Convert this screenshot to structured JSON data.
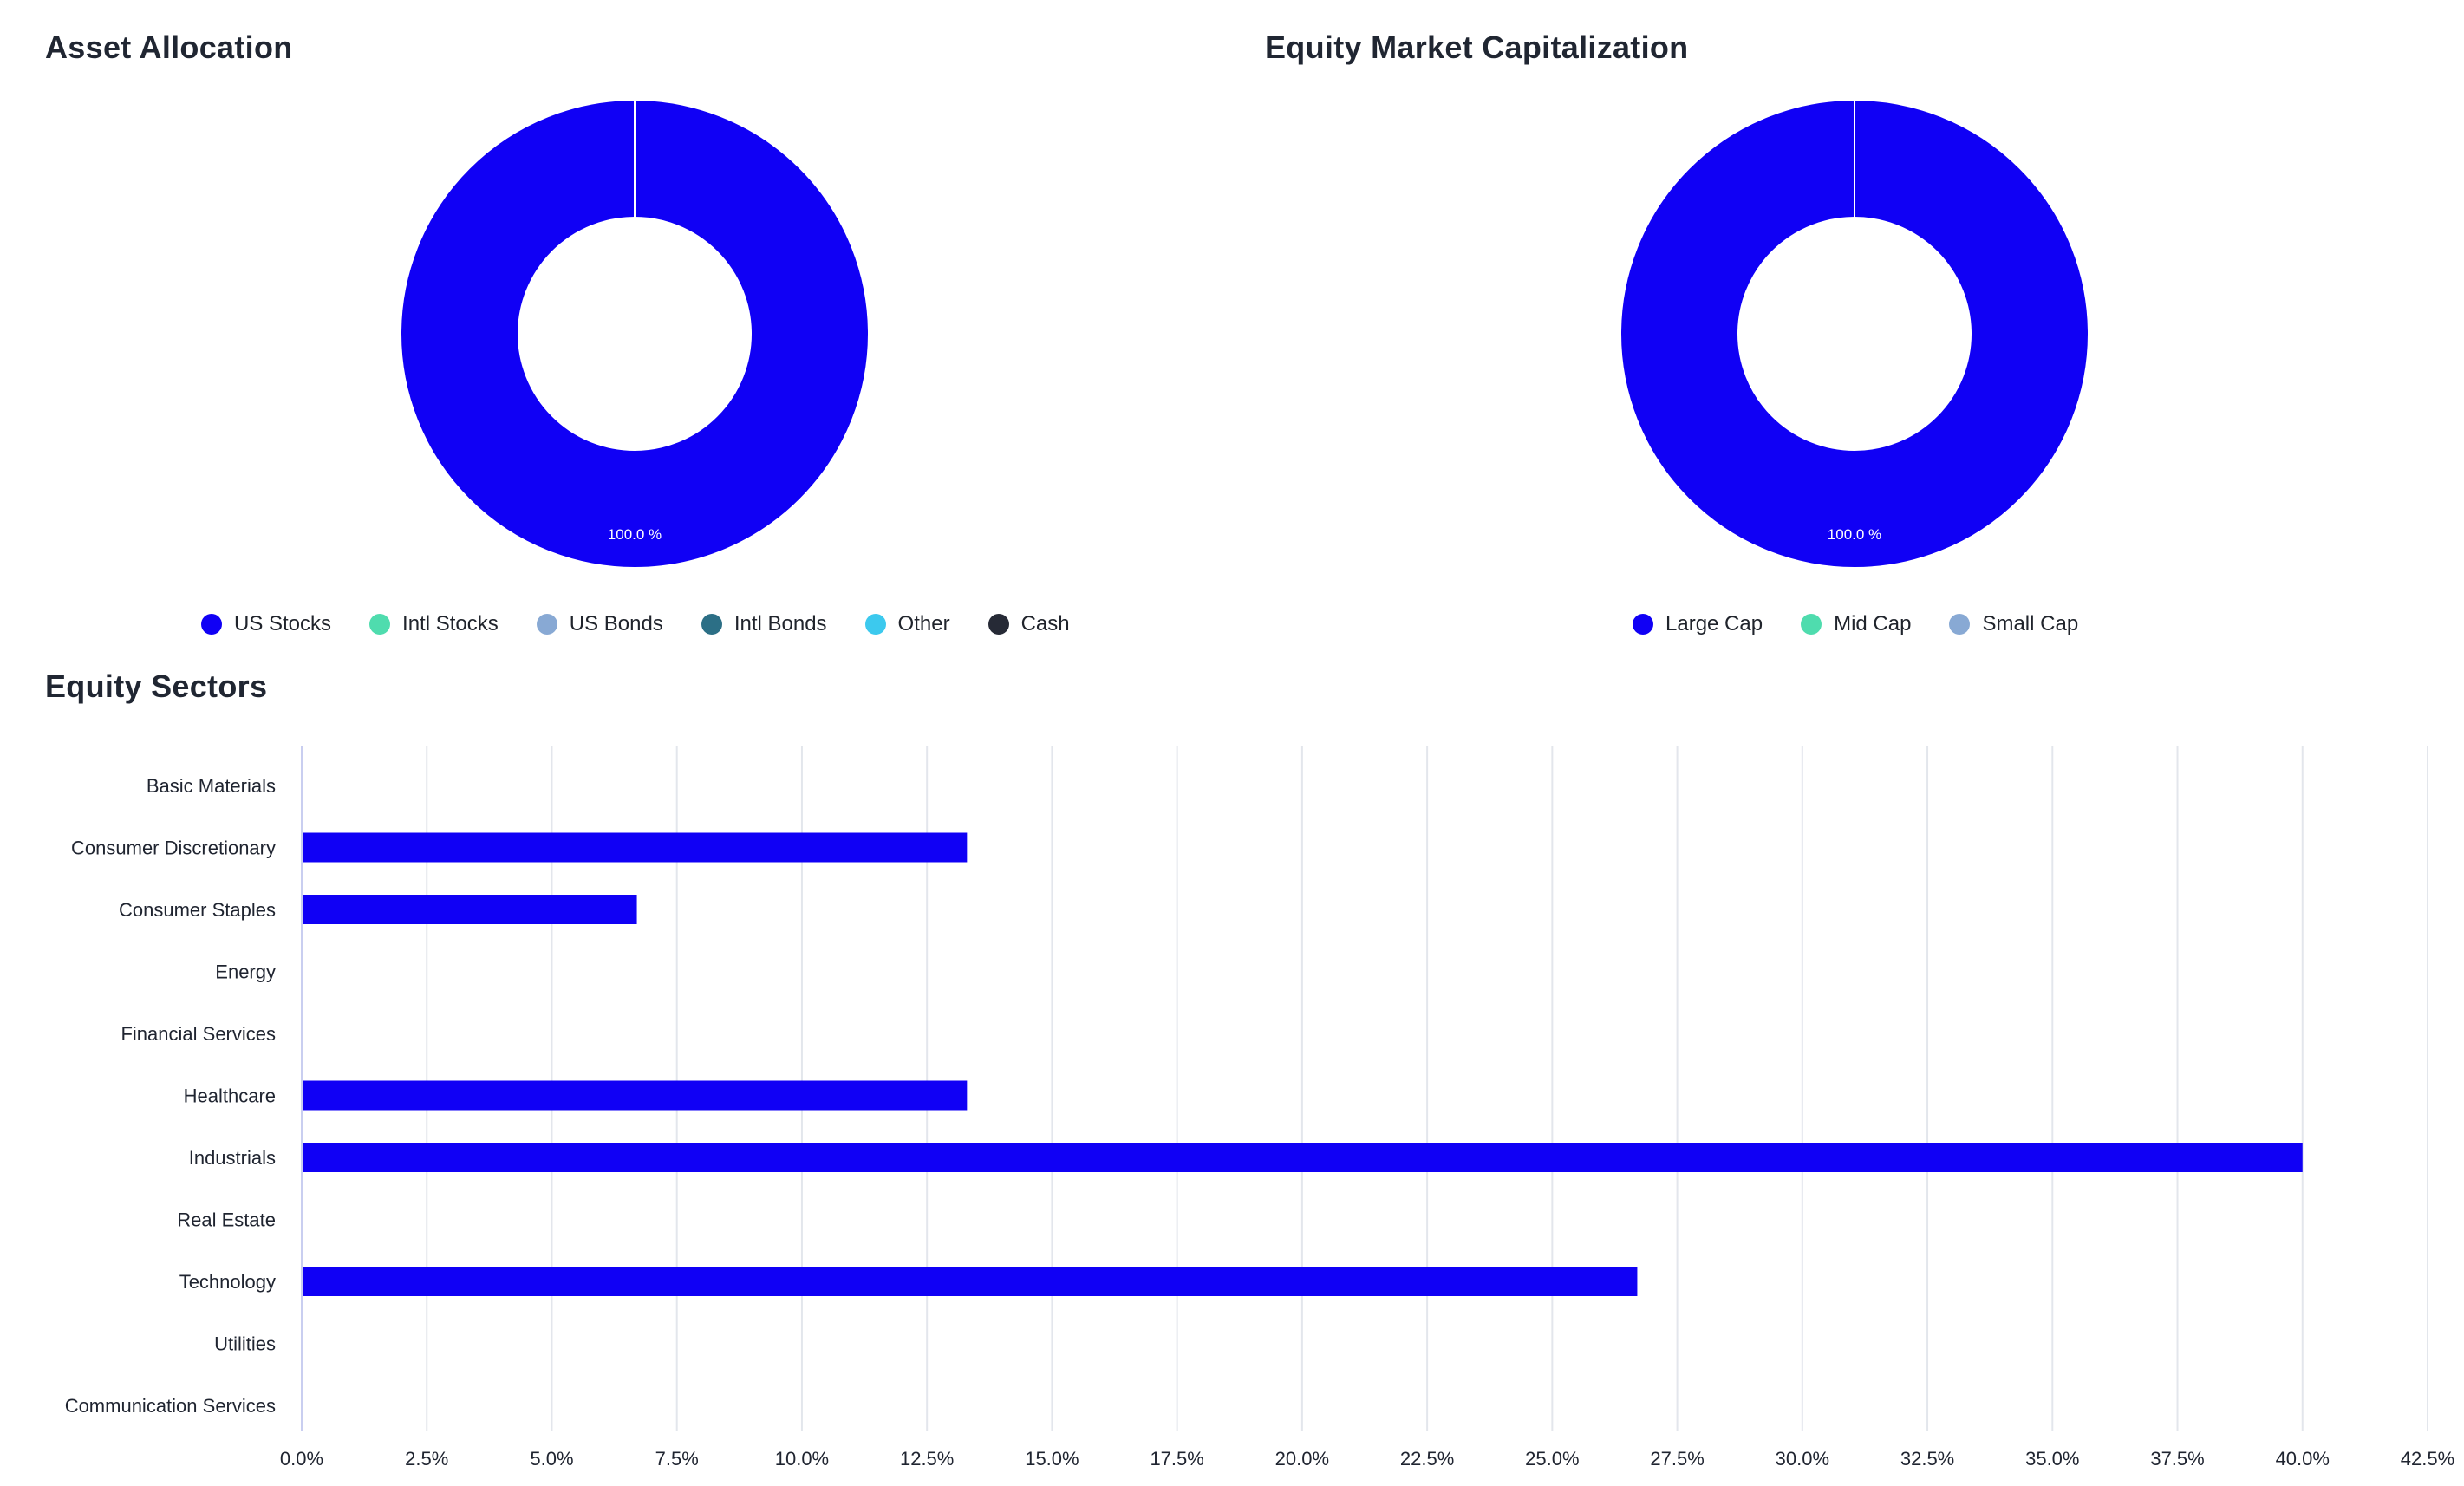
{
  "colors": {
    "primary": "#1000f5",
    "mint": "#4fdcae",
    "steel_blue": "#88a9d4",
    "teal": "#2c6f86",
    "cyan": "#3cc9ee",
    "dark": "#262a36",
    "grid": "#e3e6ec",
    "axis": "#c9cef0"
  },
  "asset_allocation": {
    "title": "Asset Allocation",
    "center_label": "100.0 %",
    "legend": [
      {
        "label": "US Stocks",
        "color": "#1000f5"
      },
      {
        "label": "Intl Stocks",
        "color": "#4fdcae"
      },
      {
        "label": "US Bonds",
        "color": "#88a9d4"
      },
      {
        "label": "Intl Bonds",
        "color": "#2c6f86"
      },
      {
        "label": "Other",
        "color": "#3cc9ee"
      },
      {
        "label": "Cash",
        "color": "#262a36"
      }
    ]
  },
  "market_cap": {
    "title": "Equity Market Capitalization",
    "center_label": "100.0 %",
    "legend": [
      {
        "label": "Large Cap",
        "color": "#1000f5"
      },
      {
        "label": "Mid Cap",
        "color": "#4fdcae"
      },
      {
        "label": "Small Cap",
        "color": "#88a9d4"
      }
    ]
  },
  "equity_sectors": {
    "title": "Equity Sectors"
  },
  "chart_data": [
    {
      "type": "pie",
      "title": "Asset Allocation",
      "donut": true,
      "categories": [
        "US Stocks",
        "Intl Stocks",
        "US Bonds",
        "Intl Bonds",
        "Other",
        "Cash"
      ],
      "values": [
        100.0,
        0,
        0,
        0,
        0,
        0
      ],
      "data_labels": [
        "100.0 %"
      ],
      "legend": "bottom"
    },
    {
      "type": "pie",
      "title": "Equity Market Capitalization",
      "donut": true,
      "categories": [
        "Large Cap",
        "Mid Cap",
        "Small Cap"
      ],
      "values": [
        100.0,
        0,
        0
      ],
      "data_labels": [
        "100.0 %"
      ],
      "legend": "bottom"
    },
    {
      "type": "bar",
      "orientation": "horizontal",
      "title": "Equity Sectors",
      "categories": [
        "Basic Materials",
        "Consumer Discretionary",
        "Consumer Staples",
        "Energy",
        "Financial Services",
        "Healthcare",
        "Industrials",
        "Real Estate",
        "Technology",
        "Utilities",
        "Communication Services"
      ],
      "values": [
        0,
        13.3,
        6.7,
        0,
        0,
        13.3,
        40.0,
        0,
        26.7,
        0,
        0
      ],
      "xlim": [
        0,
        42.5
      ],
      "xticks": [
        "0.0%",
        "2.5%",
        "5.0%",
        "7.5%",
        "10.0%",
        "12.5%",
        "15.0%",
        "17.5%",
        "20.0%",
        "22.5%",
        "25.0%",
        "27.5%",
        "30.0%",
        "32.5%",
        "35.0%",
        "37.5%",
        "40.0%",
        "42.5%"
      ],
      "grid": true,
      "xlabel": "",
      "ylabel": ""
    }
  ]
}
